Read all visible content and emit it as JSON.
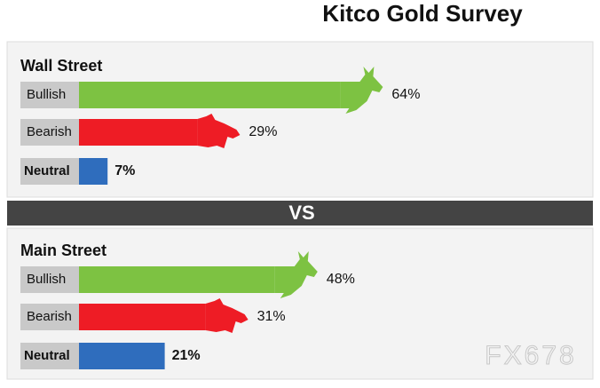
{
  "title": "Kitco Gold Survey",
  "separator": "VS",
  "watermark": "FX678",
  "chart_data": [
    {
      "type": "bar",
      "title": "Wall Street",
      "categories": [
        "Bullish",
        "Bearish",
        "Neutral"
      ],
      "values": [
        64,
        29,
        7
      ],
      "value_labels": [
        "64%",
        "29%",
        "7%"
      ],
      "colors": [
        "#7dc242",
        "#ee1c25",
        "#2f6dbd"
      ]
    },
    {
      "type": "bar",
      "title": "Main Street",
      "categories": [
        "Bullish",
        "Bearish",
        "Neutral"
      ],
      "values": [
        48,
        31,
        21
      ],
      "value_labels": [
        "48%",
        "31%",
        "21%"
      ],
      "colors": [
        "#7dc242",
        "#ee1c25",
        "#2f6dbd"
      ]
    }
  ]
}
